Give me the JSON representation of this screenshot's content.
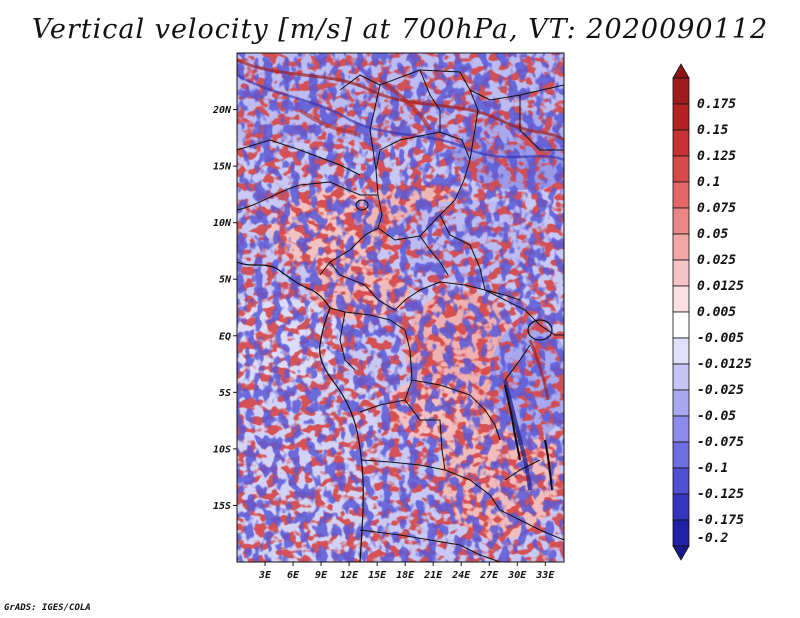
{
  "title": "Vertical velocity [m/s] at 700hPa, VT: 2020090112",
  "footer": "GrADS: IGES/COLA",
  "map": {
    "variable": "Vertical velocity",
    "units": "m/s",
    "level": "700hPa",
    "valid_time": "2020090112",
    "lon_range": [
      0,
      35
    ],
    "lat_range": [
      -20,
      25
    ],
    "lat_ticks": [
      {
        "value": 20,
        "label": "20N"
      },
      {
        "value": 15,
        "label": "15N"
      },
      {
        "value": 10,
        "label": "10N"
      },
      {
        "value": 5,
        "label": "5N"
      },
      {
        "value": 0,
        "label": "EQ"
      },
      {
        "value": -5,
        "label": "5S"
      },
      {
        "value": -10,
        "label": "10S"
      },
      {
        "value": -15,
        "label": "15S"
      }
    ],
    "lon_ticks": [
      {
        "value": 3,
        "label": "3E"
      },
      {
        "value": 6,
        "label": "6E"
      },
      {
        "value": 9,
        "label": "9E"
      },
      {
        "value": 12,
        "label": "12E"
      },
      {
        "value": 15,
        "label": "15E"
      },
      {
        "value": 18,
        "label": "18E"
      },
      {
        "value": 21,
        "label": "21E"
      },
      {
        "value": 24,
        "label": "24E"
      },
      {
        "value": 27,
        "label": "27E"
      },
      {
        "value": 30,
        "label": "30E"
      },
      {
        "value": 33,
        "label": "33E"
      }
    ]
  },
  "colorbar": {
    "levels": [
      {
        "label": "0.175",
        "color": "#a01c1c"
      },
      {
        "label": "0.15",
        "color": "#b42222"
      },
      {
        "label": "0.125",
        "color": "#c83232"
      },
      {
        "label": "0.1",
        "color": "#d84a4a"
      },
      {
        "label": "0.075",
        "color": "#e46666"
      },
      {
        "label": "0.05",
        "color": "#ec8686"
      },
      {
        "label": "0.025",
        "color": "#f2a6a6"
      },
      {
        "label": "0.0125",
        "color": "#f6c4c4"
      },
      {
        "label": "0.005",
        "color": "#fae0e0"
      },
      {
        "label": "-0.005",
        "color": "#ffffff"
      },
      {
        "label": "-0.0125",
        "color": "#e0e0fa"
      },
      {
        "label": "-0.025",
        "color": "#c4c4f6"
      },
      {
        "label": "-0.05",
        "color": "#a8a8f2"
      },
      {
        "label": "-0.075",
        "color": "#8c8cec"
      },
      {
        "label": "-0.1",
        "color": "#6e6ee2"
      },
      {
        "label": "-0.125",
        "color": "#5050d4"
      },
      {
        "label": "-0.175",
        "color": "#3434c0"
      },
      {
        "label": "-0.2",
        "color": "#2020a8"
      }
    ],
    "top_over_color": "#8c1414",
    "bottom_under_color": "#18188c"
  }
}
